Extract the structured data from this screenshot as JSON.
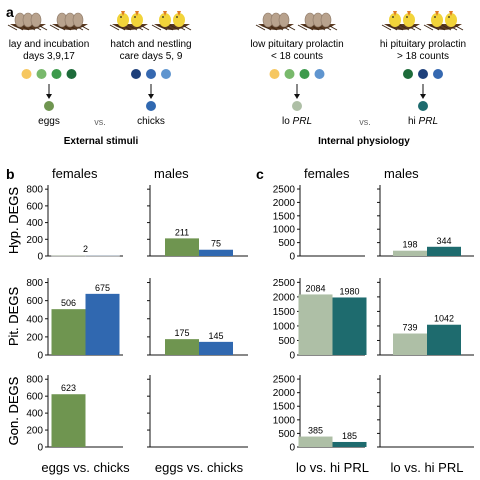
{
  "panel_labels": [
    "a",
    "b",
    "c"
  ],
  "panel_a": {
    "groups": [
      {
        "title_lines": [
          "lay and incubation",
          "days 3,9,17"
        ],
        "dot_colors": [
          "#f6c760",
          "#78b96b",
          "#3d9a4c",
          "#1d6b3a"
        ],
        "result_label": "eggs",
        "result_color": "#6f9550",
        "icon": "nest-with-eggs-icon"
      },
      {
        "title_lines": [
          "hatch and nestling",
          "care days 5, 9"
        ],
        "dot_colors": [
          "#1d3f7a",
          "#3568b0",
          "#5f95cf"
        ],
        "result_label": "chicks",
        "result_color": "#3068b0",
        "icon": "nest-with-chicks-icon"
      },
      {
        "title_lines": [
          "low pituitary prolactin",
          "< 18 counts"
        ],
        "dot_colors": [
          "#f6c760",
          "#78b96b",
          "#3d9a4c",
          "#5f95cf"
        ],
        "result_label": "lo",
        "result_italic": "PRL",
        "result_color": "#aebfa6",
        "icon": "nest-with-eggs-icon"
      },
      {
        "title_lines": [
          "hi pituitary prolactin",
          "> 18 counts"
        ],
        "dot_colors": [
          "#1d6b3a",
          "#1d3f7a",
          "#3568b0"
        ],
        "result_label": "hi",
        "result_italic": "PRL",
        "result_color": "#1e6b6e",
        "icon": "nest-with-chicks-icon"
      }
    ],
    "vs_label": "vs.",
    "section_labels": [
      "External stimuli",
      "Internal physiology"
    ]
  },
  "chart_data": [
    {
      "panel": "b",
      "column_title": "females",
      "xlabel": "eggs vs. chicks",
      "ylim": [
        0,
        850
      ],
      "yticks": [
        0,
        200,
        400,
        600,
        800
      ],
      "series": [
        {
          "name": "eggs",
          "color": "#6f9550"
        },
        {
          "name": "chicks",
          "color": "#3068b0"
        }
      ],
      "rows": [
        {
          "ylabel": "Hyp. DEGS",
          "values": [
            2,
            0
          ],
          "labels": [
            "2"
          ],
          "center_label": true
        },
        {
          "ylabel": "Pit. DEGS",
          "values": [
            506,
            675
          ],
          "labels": [
            "506",
            "675"
          ]
        },
        {
          "ylabel": "Gon. DEGS",
          "values": [
            623,
            null
          ],
          "labels": [
            "623"
          ]
        }
      ]
    },
    {
      "panel": "b",
      "column_title": "males",
      "xlabel": "eggs vs. chicks",
      "ylim": [
        0,
        850
      ],
      "yticks": [
        0,
        200,
        400,
        600,
        800
      ],
      "series": [
        {
          "name": "eggs",
          "color": "#6f9550"
        },
        {
          "name": "chicks",
          "color": "#3068b0"
        }
      ],
      "rows": [
        {
          "ylabel": "Hyp. DEGS",
          "values": [
            211,
            75
          ],
          "labels": [
            "211",
            "75"
          ]
        },
        {
          "ylabel": "Pit. DEGS",
          "values": [
            175,
            145
          ],
          "labels": [
            "175",
            "145"
          ]
        },
        {
          "ylabel": "Gon. DEGS",
          "values": [
            null,
            null
          ],
          "labels": []
        }
      ]
    },
    {
      "panel": "c",
      "column_title": "females",
      "xlabel": "lo vs. hi PRL",
      "ylim": [
        0,
        2650
      ],
      "yticks": [
        0,
        500,
        1000,
        1500,
        2000,
        2500
      ],
      "series": [
        {
          "name": "lo PRL",
          "color": "#aebfa6"
        },
        {
          "name": "hi PRL",
          "color": "#1e6b6e"
        }
      ],
      "rows": [
        {
          "ylabel": "",
          "values": [
            null,
            null
          ],
          "labels": []
        },
        {
          "ylabel": "",
          "values": [
            2084,
            1980
          ],
          "labels": [
            "2084",
            "1980"
          ]
        },
        {
          "ylabel": "",
          "values": [
            385,
            185
          ],
          "labels": [
            "385",
            "185"
          ]
        }
      ]
    },
    {
      "panel": "c",
      "column_title": "males",
      "xlabel": "lo vs. hi PRL",
      "ylim": [
        0,
        2650
      ],
      "yticks": [
        0,
        500,
        1000,
        1500,
        2000,
        2500
      ],
      "series": [
        {
          "name": "lo PRL",
          "color": "#aebfa6"
        },
        {
          "name": "hi PRL",
          "color": "#1e6b6e"
        }
      ],
      "rows": [
        {
          "ylabel": "",
          "values": [
            198,
            344
          ],
          "labels": [
            "198",
            "344"
          ]
        },
        {
          "ylabel": "",
          "values": [
            739,
            1042
          ],
          "labels": [
            "739",
            "1042"
          ]
        },
        {
          "ylabel": "",
          "values": [
            null,
            null
          ],
          "labels": []
        }
      ]
    }
  ]
}
